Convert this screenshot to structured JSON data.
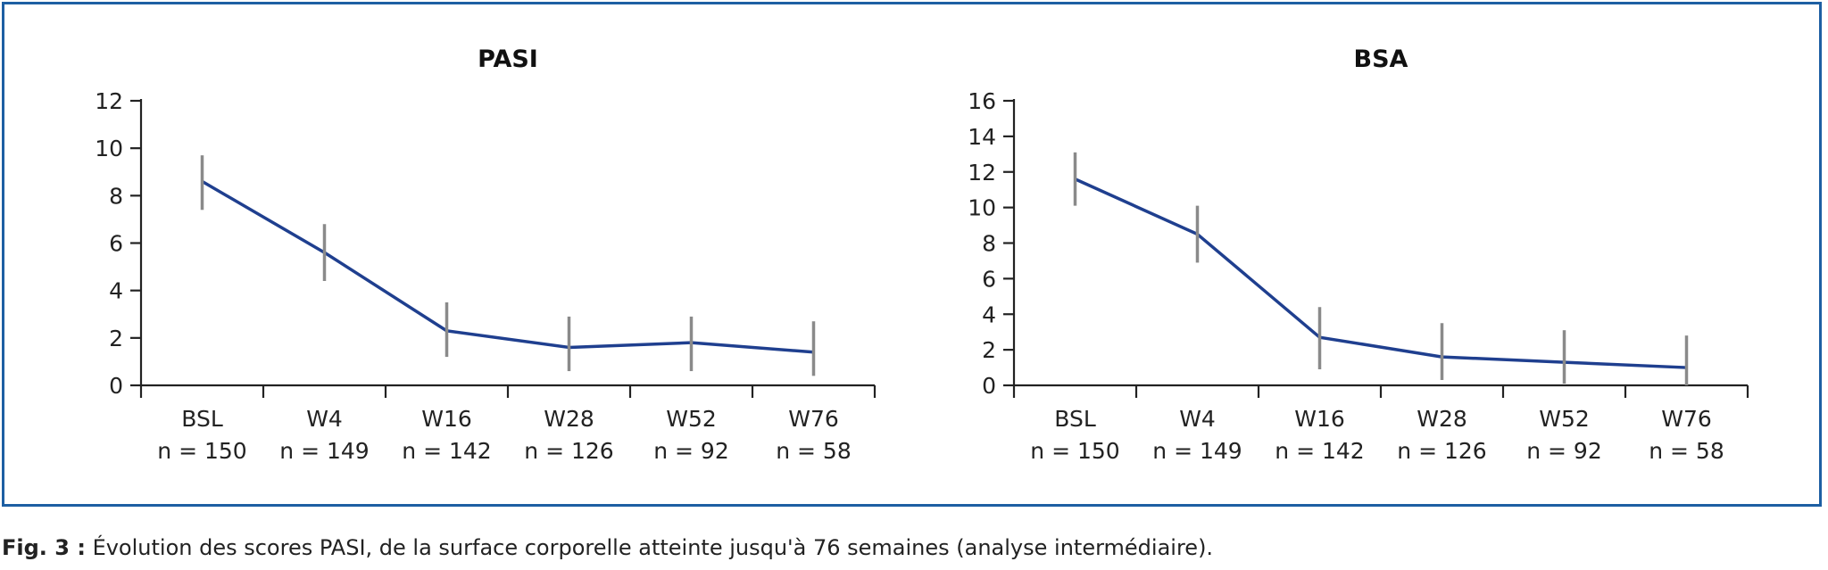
{
  "chart_data": [
    {
      "type": "line",
      "title": "PASI",
      "categories": [
        "BSL",
        "W4",
        "W16",
        "W28",
        "W52",
        "W76"
      ],
      "n_labels": [
        "n = 150",
        "n = 149",
        "n = 142",
        "n = 126",
        "n = 92",
        "n = 58"
      ],
      "values": [
        8.6,
        5.6,
        2.3,
        1.6,
        1.8,
        1.4
      ],
      "error_low": [
        7.4,
        4.4,
        1.2,
        0.6,
        0.6,
        0.4
      ],
      "error_high": [
        9.7,
        6.8,
        3.5,
        2.9,
        2.9,
        2.7
      ],
      "ylim": [
        0,
        12
      ],
      "yticks": [
        0,
        2,
        4,
        6,
        8,
        10,
        12
      ],
      "grid": false,
      "line_color": "#1f3f8f",
      "error_color": "#8a8a8a"
    },
    {
      "type": "line",
      "title": "BSA",
      "categories": [
        "BSL",
        "W4",
        "W16",
        "W28",
        "W52",
        "W76"
      ],
      "n_labels": [
        "n = 150",
        "n = 149",
        "n = 142",
        "n = 126",
        "n = 92",
        "n = 58"
      ],
      "values": [
        11.6,
        8.5,
        2.7,
        1.6,
        1.3,
        1.0
      ],
      "error_low": [
        10.1,
        6.9,
        0.9,
        0.3,
        0.1,
        0.0
      ],
      "error_high": [
        13.1,
        10.1,
        4.4,
        3.5,
        3.1,
        2.8
      ],
      "ylim": [
        0,
        16
      ],
      "yticks": [
        0,
        2,
        4,
        6,
        8,
        10,
        12,
        14,
        16
      ],
      "grid": false,
      "line_color": "#1f3f8f",
      "error_color": "#8a8a8a"
    }
  ],
  "caption": {
    "label": "Fig. 3 :",
    "text": " Évolution des scores PASI, de la surface corporelle atteinte jusqu'à 76 semaines (analyse intermédiaire)."
  },
  "colors": {
    "frame": "#1d5fa3"
  }
}
